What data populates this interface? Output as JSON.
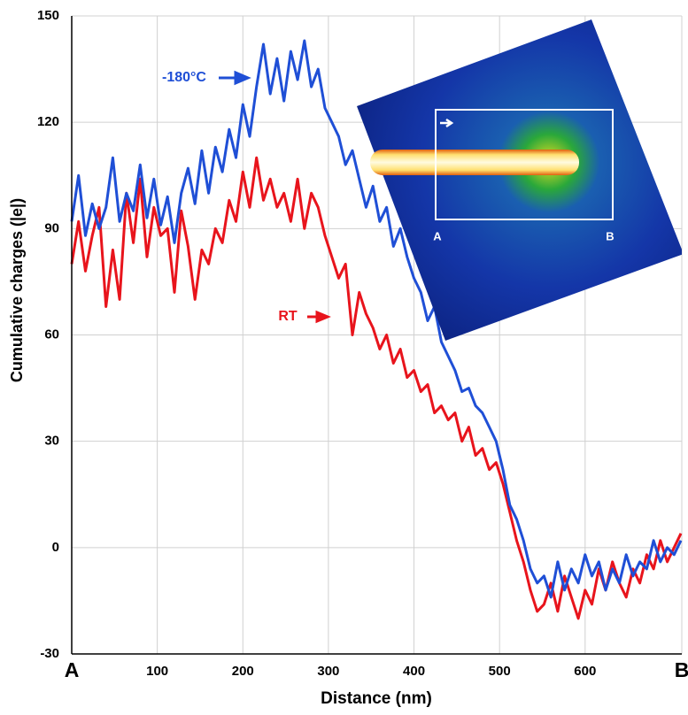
{
  "chart_data": {
    "type": "line",
    "xlabel": "Distance (nm)",
    "ylabel": "Cumulative charges (|e|)",
    "xlim": [
      0,
      713
    ],
    "ylim": [
      -30,
      150
    ],
    "xticks": [
      {
        "value": 0,
        "label": "A"
      },
      100,
      200,
      300,
      400,
      500,
      600,
      {
        "value": 713,
        "label": "B"
      }
    ],
    "yticks": [
      -30,
      0,
      30,
      60,
      90,
      120,
      150
    ],
    "grid": true,
    "annotations": [
      "-180°C",
      "RT"
    ],
    "inset_labels": [
      "A",
      "B"
    ],
    "x": [
      0,
      8,
      16,
      24,
      32,
      40,
      48,
      56,
      64,
      72,
      80,
      88,
      96,
      104,
      112,
      120,
      128,
      136,
      144,
      152,
      160,
      168,
      176,
      184,
      192,
      200,
      208,
      216,
      224,
      232,
      240,
      248,
      256,
      264,
      272,
      280,
      288,
      296,
      304,
      312,
      320,
      328,
      336,
      344,
      352,
      360,
      368,
      376,
      384,
      392,
      400,
      408,
      416,
      424,
      432,
      440,
      448,
      456,
      464,
      472,
      480,
      488,
      496,
      504,
      512,
      520,
      528,
      536,
      544,
      552,
      560,
      568,
      576,
      584,
      592,
      600,
      608,
      616,
      624,
      632,
      640,
      648,
      656,
      664,
      672,
      680,
      688,
      696,
      704,
      712
    ],
    "series": [
      {
        "name": "-180°C",
        "color": "#1f4fd6",
        "values": [
          92,
          105,
          88,
          97,
          90,
          96,
          110,
          92,
          100,
          95,
          108,
          93,
          104,
          91,
          99,
          86,
          100,
          107,
          97,
          112,
          100,
          113,
          106,
          118,
          110,
          125,
          116,
          130,
          142,
          128,
          138,
          126,
          140,
          132,
          143,
          130,
          135,
          124,
          120,
          116,
          108,
          112,
          104,
          96,
          102,
          92,
          96,
          85,
          90,
          82,
          76,
          72,
          64,
          68,
          58,
          54,
          50,
          44,
          45,
          40,
          38,
          34,
          30,
          22,
          12,
          8,
          2,
          -6,
          -10,
          -8,
          -14,
          -4,
          -12,
          -6,
          -10,
          -2,
          -8,
          -4,
          -12,
          -6,
          -10,
          -2,
          -8,
          -4,
          -6,
          2,
          -4,
          0,
          -2,
          2
        ]
      },
      {
        "name": "RT",
        "color": "#e8141c",
        "values": [
          80,
          92,
          78,
          88,
          96,
          68,
          84,
          70,
          100,
          86,
          104,
          82,
          96,
          88,
          90,
          72,
          95,
          85,
          70,
          84,
          80,
          90,
          86,
          98,
          92,
          106,
          96,
          110,
          98,
          104,
          96,
          100,
          92,
          104,
          90,
          100,
          96,
          88,
          82,
          76,
          80,
          60,
          72,
          66,
          62,
          56,
          60,
          52,
          56,
          48,
          50,
          44,
          46,
          38,
          40,
          36,
          38,
          30,
          34,
          26,
          28,
          22,
          24,
          18,
          10,
          2,
          -4,
          -12,
          -18,
          -16,
          -10,
          -18,
          -8,
          -14,
          -20,
          -12,
          -16,
          -6,
          -12,
          -4,
          -10,
          -14,
          -6,
          -10,
          -2,
          -6,
          2,
          -4,
          0,
          4
        ]
      }
    ]
  }
}
